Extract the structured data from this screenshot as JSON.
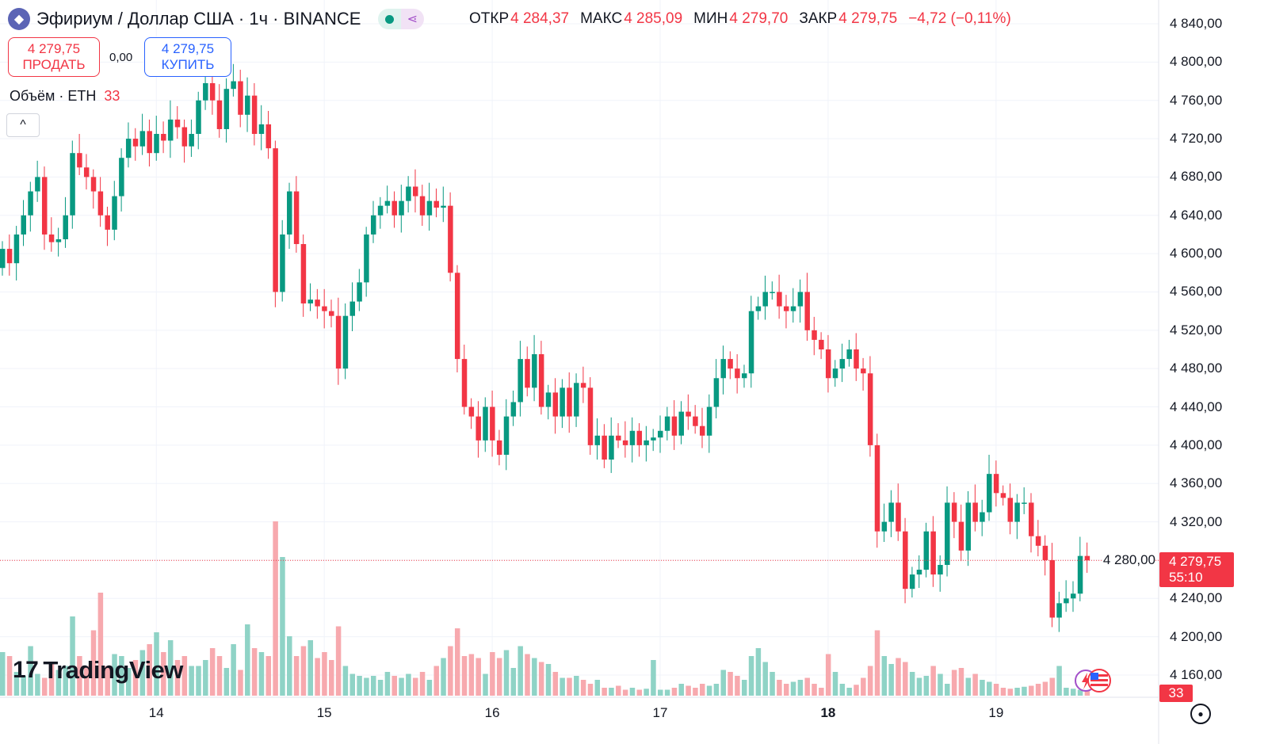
{
  "header": {
    "title": "Эфириум / Доллар США · 1ч · BINANCE",
    "logo_icon": "ethereum-icon"
  },
  "ohlc": {
    "open_label": "ОТКР",
    "open": "4 284,37",
    "high_label": "МАКС",
    "high": "4 285,09",
    "low_label": "МИН",
    "low": "4 279,70",
    "close_label": "ЗАКР",
    "close": "4 279,75",
    "change": "−4,72 (−0,11%)"
  },
  "trade": {
    "sell_price": "4 279,75",
    "sell_label": "ПРОДАТЬ",
    "spread": "0,00",
    "buy_price": "4 279,75",
    "buy_label": "КУПИТЬ"
  },
  "volume_legend": {
    "label": "Объём · ETH",
    "value": "33"
  },
  "collapse_label": "^",
  "logo_text": "TradingView",
  "current_price": {
    "price": "4 279,75",
    "countdown": "55:10"
  },
  "volume_tag": "33",
  "colors": {
    "up": "#089981",
    "down": "#f23645",
    "up_vol": "#8fd3c6",
    "down_vol": "#f7a9ae",
    "grid": "#f0f3fa"
  },
  "chart_data": {
    "type": "candlestick",
    "interval": "1h",
    "ylim": [
      4160,
      4840
    ],
    "y_ticks": [
      "4 840,00",
      "4 800,00",
      "4 760,00",
      "4 720,00",
      "4 680,00",
      "4 640,00",
      "4 600,00",
      "4 560,00",
      "4 520,00",
      "4 480,00",
      "4 440,00",
      "4 400,00",
      "4 360,00",
      "4 320,00",
      "4 280,00",
      "4 240,00",
      "4 200,00",
      "4 160,00"
    ],
    "y_tick_values": [
      4840,
      4800,
      4760,
      4720,
      4680,
      4640,
      4600,
      4560,
      4520,
      4480,
      4440,
      4400,
      4360,
      4320,
      4280,
      4240,
      4200,
      4160
    ],
    "x_ticks": [
      {
        "label": "14",
        "index": 22
      },
      {
        "label": "15",
        "index": 46
      },
      {
        "label": "16",
        "index": 70
      },
      {
        "label": "17",
        "index": 94
      },
      {
        "label": "18",
        "index": 118,
        "bold": true
      },
      {
        "label": "19",
        "index": 142
      }
    ],
    "first_open": 4585,
    "close": [
      4605,
      4590,
      4620,
      4640,
      4665,
      4680,
      4620,
      4612,
      4615,
      4640,
      4705,
      4690,
      4680,
      4665,
      4640,
      4625,
      4660,
      4700,
      4720,
      4712,
      4728,
      4705,
      4725,
      4718,
      4740,
      4732,
      4712,
      4725,
      4760,
      4778,
      4760,
      4730,
      4772,
      4780,
      4745,
      4765,
      4725,
      4735,
      4710,
      4560,
      4620,
      4665,
      4610,
      4548,
      4552,
      4545,
      4540,
      4535,
      4480,
      4535,
      4550,
      4570,
      4620,
      4640,
      4650,
      4655,
      4640,
      4655,
      4670,
      4660,
      4640,
      4655,
      4648,
      4650,
      4580,
      4490,
      4440,
      4430,
      4405,
      4440,
      4405,
      4390,
      4430,
      4445,
      4490,
      4460,
      4495,
      4440,
      4455,
      4430,
      4460,
      4430,
      4465,
      4460,
      4400,
      4410,
      4385,
      4410,
      4405,
      4400,
      4415,
      4400,
      4405,
      4408,
      4415,
      4430,
      4410,
      4435,
      4430,
      4420,
      4410,
      4440,
      4470,
      4490,
      4480,
      4470,
      4475,
      4540,
      4545,
      4560,
      4560,
      4545,
      4540,
      4545,
      4560,
      4520,
      4510,
      4500,
      4470,
      4480,
      4490,
      4500,
      4480,
      4475,
      4400,
      4310,
      4320,
      4340,
      4310,
      4250,
      4265,
      4270,
      4310,
      4265,
      4275,
      4340,
      4320,
      4290,
      4340,
      4320,
      4330,
      4370,
      4350,
      4345,
      4320,
      4340,
      4340,
      4305,
      4295,
      4280,
      4220,
      4235,
      4240,
      4245,
      4284.37,
      4279.75
    ],
    "volume": [
      220,
      200,
      120,
      100,
      250,
      110,
      90,
      170,
      130,
      150,
      400,
      200,
      150,
      330,
      520,
      150,
      210,
      200,
      140,
      180,
      230,
      260,
      320,
      220,
      280,
      180,
      200,
      150,
      150,
      180,
      240,
      200,
      140,
      260,
      130,
      360,
      240,
      220,
      200,
      880,
      700,
      300,
      200,
      250,
      280,
      190,
      220,
      180,
      350,
      150,
      110,
      100,
      90,
      100,
      80,
      120,
      100,
      90,
      110,
      90,
      120,
      80,
      150,
      190,
      250,
      340,
      200,
      210,
      190,
      110,
      220,
      190,
      230,
      140,
      250,
      210,
      190,
      170,
      160,
      120,
      90,
      90,
      100,
      80,
      60,
      80,
      40,
      40,
      50,
      30,
      40,
      30,
      35,
      180,
      30,
      30,
      40,
      60,
      50,
      40,
      60,
      50,
      60,
      130,
      120,
      100,
      80,
      200,
      240,
      170,
      120,
      80,
      60,
      70,
      80,
      90,
      60,
      40,
      210,
      120,
      60,
      40,
      55,
      90,
      150,
      330,
      200,
      160,
      190,
      170,
      120,
      90,
      100,
      150,
      110,
      60,
      130,
      140,
      90,
      110,
      80,
      70,
      60,
      40,
      35,
      40,
      45,
      50,
      60,
      70,
      90,
      150,
      40,
      35,
      30,
      33
    ]
  }
}
